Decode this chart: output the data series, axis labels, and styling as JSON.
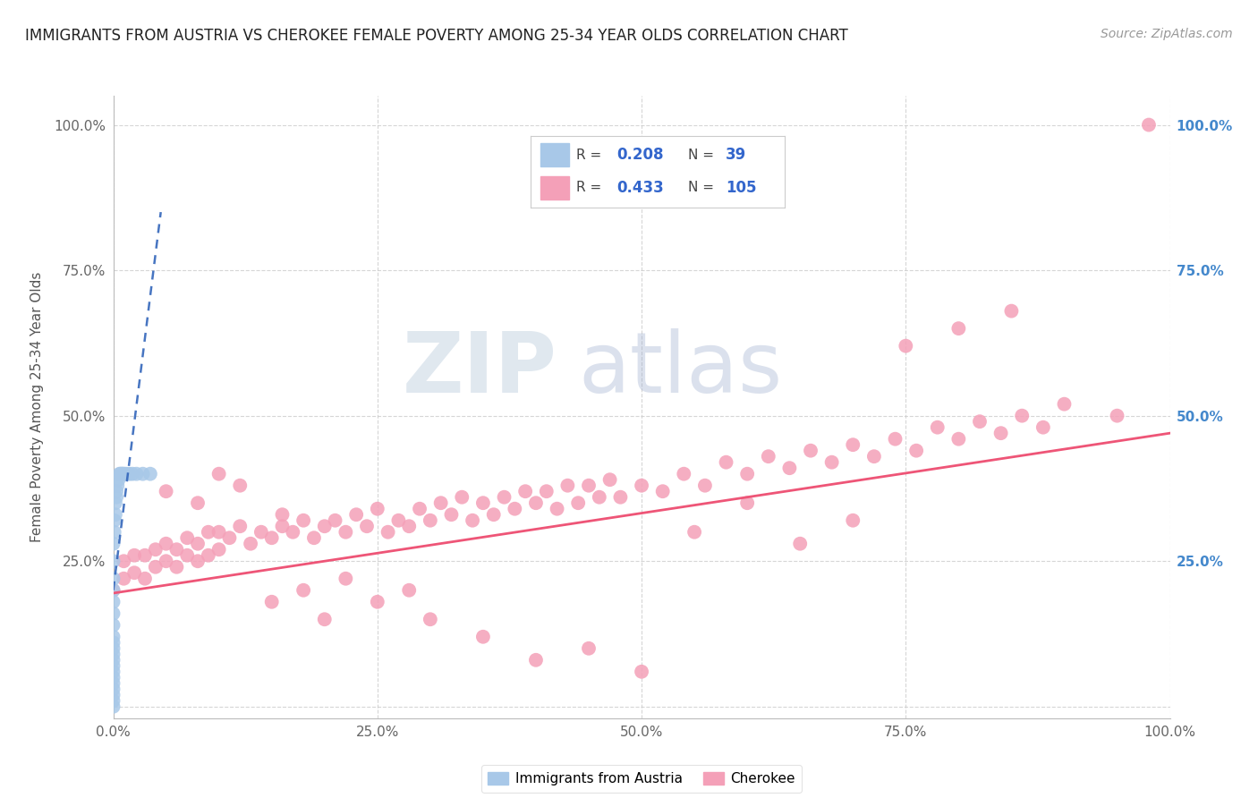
{
  "title": "IMMIGRANTS FROM AUSTRIA VS CHEROKEE FEMALE POVERTY AMONG 25-34 YEAR OLDS CORRELATION CHART",
  "source": "Source: ZipAtlas.com",
  "ylabel": "Female Poverty Among 25-34 Year Olds",
  "xlim": [
    0,
    1.0
  ],
  "ylim": [
    -0.02,
    1.05
  ],
  "xticks": [
    0.0,
    0.25,
    0.5,
    0.75,
    1.0
  ],
  "xticklabels": [
    "0.0%",
    "25.0%",
    "50.0%",
    "75.0%",
    "100.0%"
  ],
  "ytick_positions": [
    0.0,
    0.25,
    0.5,
    0.75,
    1.0
  ],
  "right_yticklabels": [
    "25.0%",
    "50.0%",
    "75.0%",
    "100.0%"
  ],
  "right_ytick_positions": [
    0.25,
    0.5,
    0.75,
    1.0
  ],
  "blue_color": "#A8C8E8",
  "pink_color": "#F4A0B8",
  "blue_line_color": "#3366BB",
  "pink_line_color": "#EE5577",
  "watermark_zip": "ZIP",
  "watermark_atlas": "atlas",
  "blue_scatter_x": [
    0.0,
    0.0,
    0.0,
    0.0,
    0.0,
    0.0,
    0.0,
    0.0,
    0.0,
    0.0,
    0.0,
    0.0,
    0.0,
    0.0,
    0.0,
    0.0,
    0.0,
    0.0,
    0.0,
    0.0,
    0.001,
    0.001,
    0.002,
    0.002,
    0.003,
    0.003,
    0.004,
    0.005,
    0.006,
    0.007,
    0.008,
    0.009,
    0.01,
    0.012,
    0.015,
    0.018,
    0.022,
    0.028,
    0.035
  ],
  "blue_scatter_y": [
    0.0,
    0.01,
    0.02,
    0.03,
    0.04,
    0.05,
    0.06,
    0.07,
    0.08,
    0.09,
    0.1,
    0.11,
    0.12,
    0.14,
    0.16,
    0.18,
    0.2,
    0.22,
    0.25,
    0.28,
    0.3,
    0.32,
    0.33,
    0.35,
    0.36,
    0.37,
    0.38,
    0.39,
    0.4,
    0.4,
    0.4,
    0.4,
    0.4,
    0.4,
    0.4,
    0.4,
    0.4,
    0.4,
    0.4
  ],
  "pink_scatter_x": [
    0.0,
    0.01,
    0.01,
    0.02,
    0.02,
    0.03,
    0.03,
    0.04,
    0.04,
    0.05,
    0.05,
    0.06,
    0.06,
    0.07,
    0.07,
    0.08,
    0.08,
    0.09,
    0.09,
    0.1,
    0.1,
    0.11,
    0.12,
    0.13,
    0.14,
    0.15,
    0.16,
    0.16,
    0.17,
    0.18,
    0.19,
    0.2,
    0.21,
    0.22,
    0.23,
    0.24,
    0.25,
    0.26,
    0.27,
    0.28,
    0.29,
    0.3,
    0.31,
    0.32,
    0.33,
    0.34,
    0.35,
    0.36,
    0.37,
    0.38,
    0.39,
    0.4,
    0.41,
    0.42,
    0.43,
    0.44,
    0.45,
    0.46,
    0.47,
    0.48,
    0.5,
    0.52,
    0.54,
    0.56,
    0.58,
    0.6,
    0.62,
    0.64,
    0.66,
    0.68,
    0.7,
    0.72,
    0.74,
    0.76,
    0.78,
    0.8,
    0.82,
    0.84,
    0.86,
    0.88,
    0.05,
    0.08,
    0.1,
    0.12,
    0.15,
    0.18,
    0.2,
    0.22,
    0.25,
    0.28,
    0.3,
    0.35,
    0.4,
    0.45,
    0.5,
    0.55,
    0.6,
    0.65,
    0.7,
    0.75,
    0.8,
    0.85,
    0.9,
    0.95,
    0.98
  ],
  "pink_scatter_y": [
    0.2,
    0.22,
    0.25,
    0.23,
    0.26,
    0.22,
    0.26,
    0.24,
    0.27,
    0.25,
    0.28,
    0.24,
    0.27,
    0.26,
    0.29,
    0.25,
    0.28,
    0.26,
    0.3,
    0.27,
    0.3,
    0.29,
    0.31,
    0.28,
    0.3,
    0.29,
    0.31,
    0.33,
    0.3,
    0.32,
    0.29,
    0.31,
    0.32,
    0.3,
    0.33,
    0.31,
    0.34,
    0.3,
    0.32,
    0.31,
    0.34,
    0.32,
    0.35,
    0.33,
    0.36,
    0.32,
    0.35,
    0.33,
    0.36,
    0.34,
    0.37,
    0.35,
    0.37,
    0.34,
    0.38,
    0.35,
    0.38,
    0.36,
    0.39,
    0.36,
    0.38,
    0.37,
    0.4,
    0.38,
    0.42,
    0.4,
    0.43,
    0.41,
    0.44,
    0.42,
    0.45,
    0.43,
    0.46,
    0.44,
    0.48,
    0.46,
    0.49,
    0.47,
    0.5,
    0.48,
    0.37,
    0.35,
    0.4,
    0.38,
    0.18,
    0.2,
    0.15,
    0.22,
    0.18,
    0.2,
    0.15,
    0.12,
    0.08,
    0.1,
    0.06,
    0.3,
    0.35,
    0.28,
    0.32,
    0.62,
    0.65,
    0.68,
    0.52,
    0.5,
    1.0
  ],
  "blue_trend_x0": 0.0,
  "blue_trend_y0": 0.2,
  "blue_trend_x1": 0.045,
  "blue_trend_y1": 0.85,
  "pink_trend_x0": 0.0,
  "pink_trend_y0": 0.195,
  "pink_trend_x1": 1.0,
  "pink_trend_y1": 0.47
}
